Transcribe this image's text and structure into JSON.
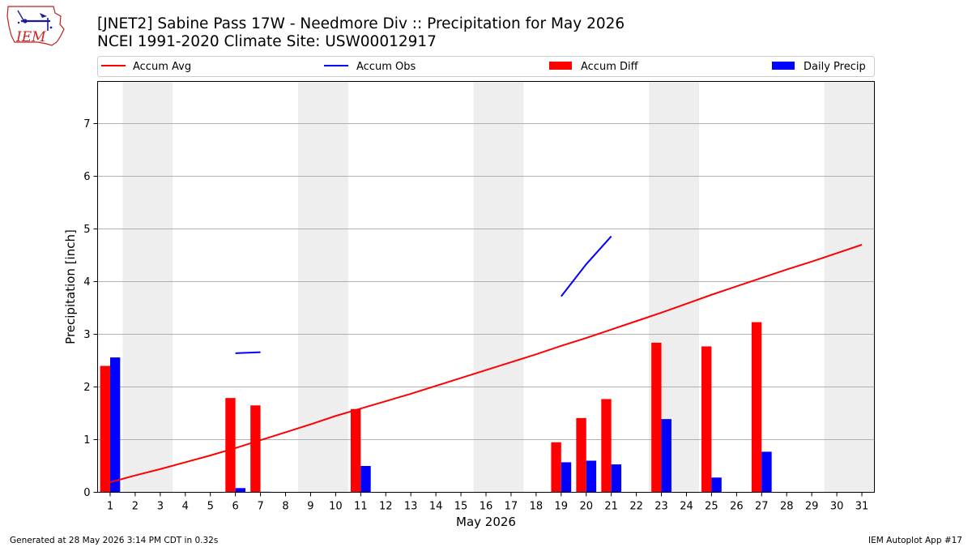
{
  "logo_text": "IEM",
  "title_line1": "[JNET2] Sabine Pass 17W - Needmore Div :: Precipitation for May 2026",
  "title_line2": "NCEI 1991-2020 Climate Site: USW00012917",
  "footer_left": "Generated at 28 May 2026 3:14 PM CDT in 0.32s",
  "footer_right": "IEM Autoplot App #17",
  "colors": {
    "avg": "#ff0000",
    "obs": "#0000ff",
    "diff": "#ff0000",
    "daily": "#0000ff",
    "weekend": "#eeeeee",
    "grid": "#b0b0b0"
  },
  "chart_data": {
    "type": "bar",
    "xlabel": "May 2026",
    "ylabel": "Precipitation [inch]",
    "xlim": [
      0.5,
      31.5
    ],
    "ylim": [
      0,
      7.8
    ],
    "x_ticks": [
      1,
      2,
      3,
      4,
      5,
      6,
      7,
      8,
      9,
      10,
      11,
      12,
      13,
      14,
      15,
      16,
      17,
      18,
      19,
      20,
      21,
      22,
      23,
      24,
      25,
      26,
      27,
      28,
      29,
      30,
      31
    ],
    "y_ticks": [
      0,
      1,
      2,
      3,
      4,
      5,
      6,
      7
    ],
    "grid": true,
    "legend_position": "top, above plot",
    "legend": [
      {
        "label": "Accum Avg",
        "kind": "line",
        "color": "#ff0000"
      },
      {
        "label": "Accum Obs",
        "kind": "line",
        "color": "#0000ff"
      },
      {
        "label": "Accum Diff",
        "kind": "bar",
        "color": "#ff0000"
      },
      {
        "label": "Daily Precip",
        "kind": "bar",
        "color": "#0000ff"
      }
    ],
    "weekend_bands": [
      [
        1.5,
        3.5
      ],
      [
        8.5,
        10.5
      ],
      [
        15.5,
        17.5
      ],
      [
        22.5,
        24.5
      ],
      [
        29.5,
        31.5
      ]
    ],
    "accum_avg": {
      "days": [
        1,
        2,
        3,
        4,
        5,
        6,
        7,
        8,
        9,
        10,
        11,
        12,
        13,
        14,
        15,
        16,
        17,
        18,
        19,
        20,
        21,
        22,
        23,
        24,
        25,
        26,
        27,
        28,
        29,
        30,
        31
      ],
      "values": [
        0.19,
        0.32,
        0.44,
        0.57,
        0.7,
        0.84,
        0.99,
        1.14,
        1.29,
        1.45,
        1.59,
        1.73,
        1.87,
        2.02,
        2.17,
        2.32,
        2.47,
        2.62,
        2.78,
        2.93,
        3.09,
        3.25,
        3.41,
        3.58,
        3.75,
        3.91,
        4.07,
        4.23,
        4.38,
        4.54,
        4.7
      ]
    },
    "accum_obs": [
      {
        "days": [
          6,
          7
        ],
        "values": [
          2.64,
          2.66
        ]
      },
      {
        "days": [
          19,
          20,
          21
        ],
        "values": [
          3.72,
          4.33,
          4.86
        ]
      }
    ],
    "series": [
      {
        "name": "Accum Diff",
        "days": [
          1,
          6,
          7,
          11,
          19,
          20,
          21,
          23,
          25,
          27
        ],
        "values": [
          2.4,
          1.79,
          1.65,
          1.58,
          0.95,
          1.41,
          1.77,
          2.84,
          2.77,
          3.23
        ]
      },
      {
        "name": "Daily Precip",
        "days": [
          1,
          6,
          7,
          11,
          19,
          20,
          21,
          23,
          25,
          27
        ],
        "values": [
          2.56,
          0.08,
          0.01,
          0.5,
          0.57,
          0.6,
          0.53,
          1.39,
          0.28,
          0.77
        ]
      }
    ]
  }
}
